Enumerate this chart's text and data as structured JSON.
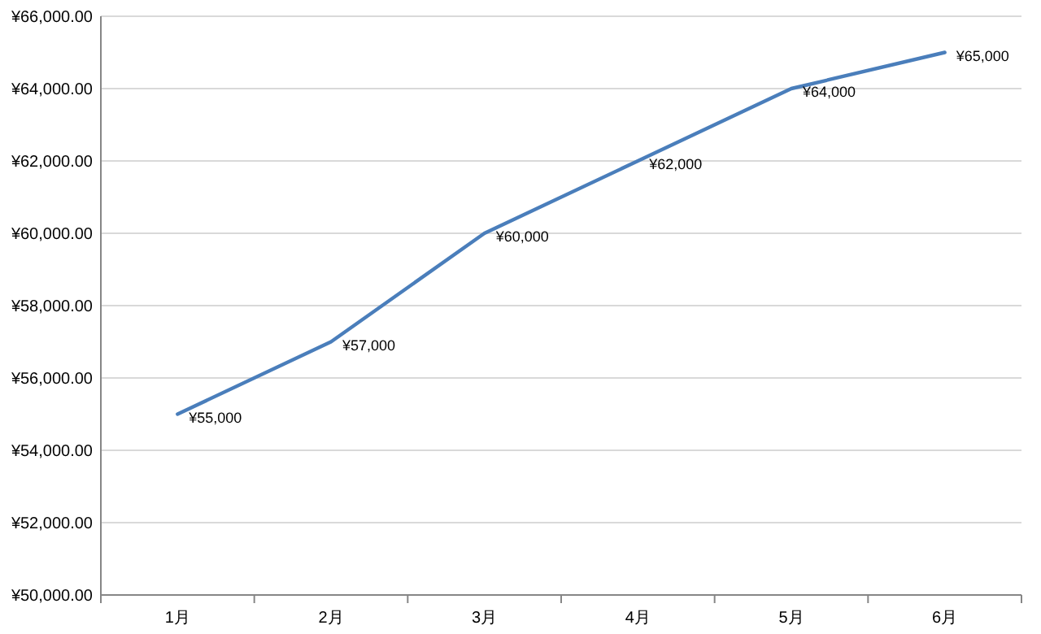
{
  "chart_data": {
    "type": "line",
    "categories": [
      "1月",
      "2月",
      "3月",
      "4月",
      "5月",
      "6月"
    ],
    "series": [
      {
        "color": "#4a7ebb",
        "values": [
          55000,
          57000,
          60000,
          62000,
          64000,
          65000
        ],
        "value_labels": [
          "¥55,000",
          "¥57,000",
          "¥60,000",
          "¥62,000",
          "¥64,000",
          "¥65,000"
        ]
      }
    ],
    "ylim": [
      50000,
      66000
    ],
    "yticks": [
      {
        "value": 50000,
        "label": "¥50,000.00"
      },
      {
        "value": 52000,
        "label": "¥52,000.00"
      },
      {
        "value": 54000,
        "label": "¥54,000.00"
      },
      {
        "value": 56000,
        "label": "¥56,000.00"
      },
      {
        "value": 58000,
        "label": "¥58,000.00"
      },
      {
        "value": 60000,
        "label": "¥60,000.00"
      },
      {
        "value": 62000,
        "label": "¥62,000.00"
      },
      {
        "value": 64000,
        "label": "¥64,000.00"
      },
      {
        "value": 66000,
        "label": "¥66,000.00"
      }
    ],
    "grid": "y",
    "marker": "none",
    "line_style": "solid"
  }
}
